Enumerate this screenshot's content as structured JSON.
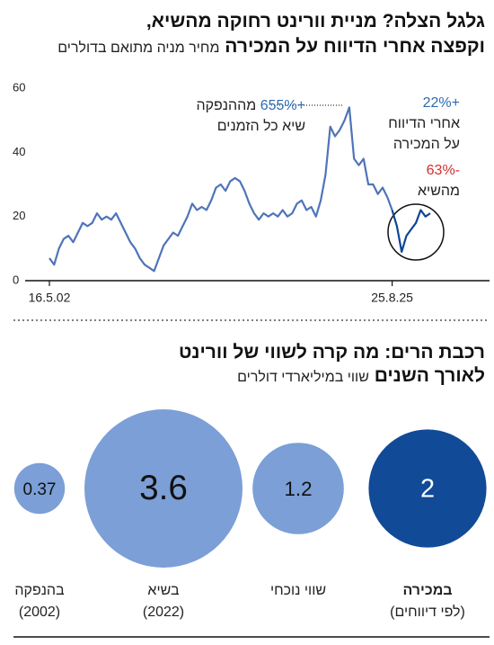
{
  "chart_data": [
    {
      "type": "line",
      "title": [
        "גלגל הצלה? מניית וורינט רחוקה מהשיא,",
        "וקפצה אחרי הדיווח על המכירה"
      ],
      "subtitle": "מחיר מניה מתואם בדולרים",
      "x": [
        "16.5.02",
        null,
        null,
        null,
        null,
        null,
        null,
        null,
        null,
        null,
        null,
        null,
        null,
        null,
        null,
        null,
        null,
        null,
        null,
        null,
        null,
        null,
        null,
        null,
        null,
        null,
        null,
        null,
        null,
        null,
        null,
        null,
        null,
        null,
        null,
        null,
        null,
        null,
        null,
        null,
        null,
        null,
        null,
        null,
        null,
        null,
        null,
        null,
        null,
        null,
        null,
        null,
        null,
        null,
        null,
        null,
        null,
        null,
        null,
        null,
        null,
        null,
        null,
        null,
        null,
        null,
        null,
        null,
        null,
        null,
        null,
        null,
        "25.8.25",
        null,
        null,
        null,
        null,
        null,
        null,
        null,
        null
      ],
      "ylim": [
        0,
        60
      ],
      "yticks": [
        0,
        20,
        40,
        60
      ],
      "series": [
        {
          "color": "#4f74b8",
          "values": [
            7,
            5,
            10,
            13,
            14,
            12,
            15,
            18,
            17,
            18,
            21,
            19,
            20,
            19,
            21,
            18,
            15,
            12,
            10,
            7,
            5,
            4,
            3,
            7,
            11,
            13,
            15,
            14,
            17,
            20,
            24,
            22,
            23,
            22,
            25,
            29,
            30,
            28,
            31,
            32,
            31,
            28,
            24,
            21,
            19,
            21,
            20,
            21,
            20,
            22,
            20,
            21,
            24,
            25,
            22,
            23,
            20,
            25,
            33,
            48,
            45,
            47,
            50,
            54,
            38,
            36,
            38,
            30,
            30,
            27,
            29,
            26,
            22,
            null,
            null,
            null,
            null,
            null,
            null,
            null,
            null
          ]
        },
        {
          "color": "#0e4596",
          "values": [
            null,
            null,
            null,
            null,
            null,
            null,
            null,
            null,
            null,
            null,
            null,
            null,
            null,
            null,
            null,
            null,
            null,
            null,
            null,
            null,
            null,
            null,
            null,
            null,
            null,
            null,
            null,
            null,
            null,
            null,
            null,
            null,
            null,
            null,
            null,
            null,
            null,
            null,
            null,
            null,
            null,
            null,
            null,
            null,
            null,
            null,
            null,
            null,
            null,
            null,
            null,
            null,
            null,
            null,
            null,
            null,
            null,
            null,
            null,
            null,
            null,
            null,
            null,
            null,
            null,
            null,
            null,
            null,
            null,
            null,
            null,
            null,
            22,
            17,
            9,
            14,
            16,
            18,
            22,
            20,
            21
          ]
        }
      ],
      "annotations": [
        {
          "lines": [
            [
              {
                "text": "+655%",
                "color": "#2c6bb3"
              },
              {
                "text": "מההנפקה"
              }
            ],
            [
              {
                "text": "שיא כל הזמנים"
              }
            ]
          ]
        },
        {
          "lines": [
            [
              {
                "text": "+22%",
                "color": "#2c6bb3"
              }
            ],
            [
              {
                "text": "אחרי הדיווח"
              }
            ],
            [
              {
                "text": "על המכירה"
              }
            ]
          ]
        },
        {
          "lines": [
            [
              {
                "text": "-63%",
                "color": "#d32f2f"
              }
            ],
            [
              {
                "text": "מהשיא"
              }
            ]
          ]
        }
      ]
    },
    {
      "type": "bubble",
      "title": [
        "רכבת הרים: מה קרה לשווי של וורינט",
        "לאורך השנים"
      ],
      "subtitle": "שווי במיליארדי דולרים",
      "categories": [
        "בהנפקה",
        "בשיא",
        "שווי נוכחי",
        "במכירה"
      ],
      "category_notes": [
        "(2002)",
        "(2022)",
        null,
        "(לפי דיווחים)"
      ],
      "values": [
        0.37,
        3.6,
        1.2,
        2
      ],
      "colors": [
        "#7b9fd6",
        "#7b9fd6",
        "#7b9fd6",
        "#114a97"
      ]
    }
  ]
}
